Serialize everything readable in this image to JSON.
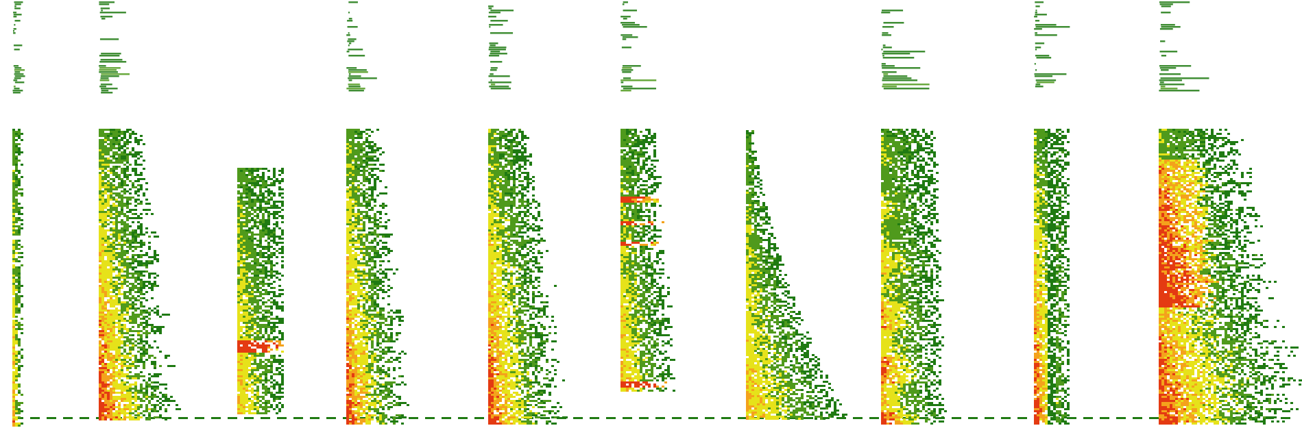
{
  "palette": {
    "background": "#ffffff",
    "low": "#1f7a12",
    "mid": "#4f9a1c",
    "high": "#e6e21a",
    "peak": "#f4a21c",
    "max": "#e43a12"
  },
  "panels": [
    {
      "id": "panel-1",
      "intensity": "medium",
      "profile": "narrow-band"
    },
    {
      "id": "panel-2",
      "intensity": "high",
      "profile": "broadband-decay"
    },
    {
      "id": "panel-3",
      "intensity": "medium",
      "profile": "low-band-cluster"
    },
    {
      "id": "panel-4",
      "intensity": "high",
      "profile": "broadband-decay"
    },
    {
      "id": "panel-5",
      "intensity": "high",
      "profile": "broadband-decay"
    },
    {
      "id": "panel-6",
      "intensity": "medium",
      "profile": "harmonic-stack"
    },
    {
      "id": "panel-7",
      "intensity": "medium",
      "profile": "rising-taper"
    },
    {
      "id": "panel-8",
      "intensity": "high",
      "profile": "pulsed-broadband"
    },
    {
      "id": "panel-9",
      "intensity": "high",
      "profile": "dual-stripe"
    },
    {
      "id": "panel-10",
      "intensity": "high",
      "profile": "broadband-dense"
    }
  ]
}
